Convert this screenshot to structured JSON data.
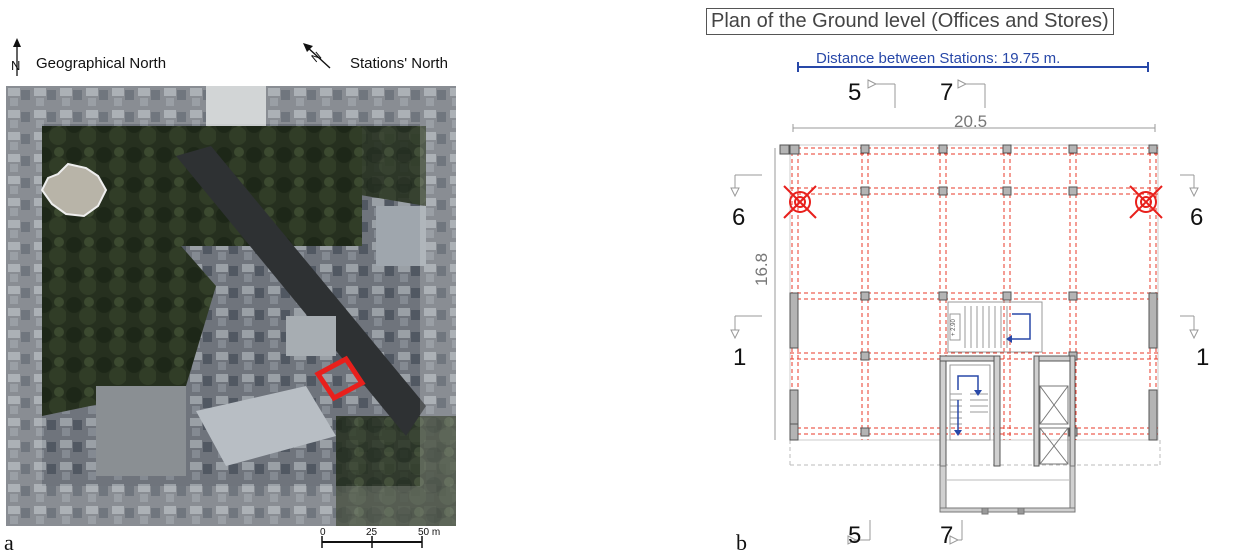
{
  "panel_a": {
    "letter": "a",
    "north_geo_label": "Geographical North",
    "north_geo_letter": "N",
    "north_station_label": "Stations' North",
    "north_station_letter": "N",
    "scale_ticks": [
      "0",
      "25",
      "50 m"
    ],
    "colors": {
      "building_outline": "#e8201c"
    }
  },
  "panel_b": {
    "letter": "b",
    "title": "Plan of the Ground level (Offices and Stores)",
    "distance_label": "Distance between Stations: 19.75 m.",
    "width_dim": "20.5",
    "depth_dim": "16.8",
    "sections": {
      "top_left": "5",
      "top_right": "7",
      "bottom_left": "5",
      "bottom_right": "7",
      "left_upper": "6",
      "right_upper": "6",
      "left_lower": "1",
      "right_lower": "1"
    },
    "stair_label": "+ 2.90",
    "colors": {
      "grid": "#e83a2a",
      "arrow": "#2848a8",
      "station": "#e8201c"
    }
  }
}
